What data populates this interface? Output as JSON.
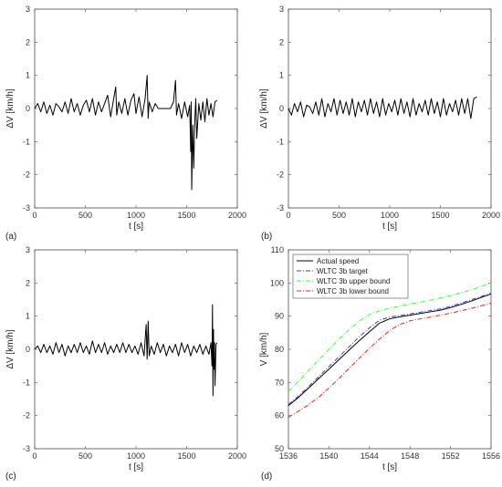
{
  "figure": {
    "panel_labels": [
      "(a)",
      "(b)",
      "(c)",
      "(d)"
    ]
  },
  "chart_data": [
    {
      "type": "line",
      "panel": "(a)",
      "xlabel": "t [s]",
      "ylabel": "ΔV [km/h]",
      "xlim": [
        0,
        2000
      ],
      "ylim": [
        -3,
        3
      ],
      "xticks": [
        0,
        500,
        1000,
        1500,
        2000
      ],
      "yticks": [
        -3,
        -2,
        -1,
        0,
        1,
        2,
        3
      ],
      "series": [
        {
          "color": "#000000",
          "x": [
            0,
            30,
            60,
            90,
            120,
            150,
            180,
            210,
            240,
            270,
            300,
            330,
            360,
            390,
            420,
            450,
            480,
            510,
            540,
            570,
            600,
            630,
            660,
            690,
            720,
            750,
            780,
            800,
            810,
            830,
            860,
            890,
            920,
            950,
            980,
            1000,
            1030,
            1060,
            1090,
            1110,
            1120,
            1130,
            1160,
            1190,
            1220,
            1250,
            1280,
            1310,
            1340,
            1370,
            1390,
            1400,
            1420,
            1450,
            1480,
            1510,
            1530,
            1540,
            1545,
            1550,
            1560,
            1570,
            1580,
            1590,
            1600,
            1620,
            1640,
            1660,
            1680,
            1700,
            1720,
            1740,
            1760,
            1780,
            1800
          ],
          "y": [
            0,
            0.15,
            -0.1,
            0.2,
            -0.15,
            0.1,
            -0.2,
            0.15,
            0.05,
            -0.1,
            0.2,
            -0.15,
            0.3,
            -0.1,
            0.15,
            -0.2,
            0.1,
            0.25,
            -0.1,
            0.3,
            -0.2,
            0.2,
            -0.1,
            0.15,
            0.4,
            -0.25,
            0.3,
            0.65,
            -0.2,
            0.2,
            -0.15,
            0.3,
            -0.2,
            0.25,
            0.45,
            -0.15,
            0.35,
            -0.25,
            0.3,
            1.0,
            -0.3,
            0.2,
            -0.1,
            0.15,
            0,
            0,
            0,
            0,
            0,
            0.2,
            0.85,
            -0.2,
            0.15,
            -0.3,
            0.2,
            -0.25,
            0.1,
            -1.3,
            0.2,
            -2.45,
            -0.5,
            -1.8,
            -0.4,
            0.3,
            -0.9,
            0.15,
            -0.35,
            0.2,
            -0.4,
            0.3,
            -0.2,
            0.15,
            -0.25,
            0.2,
            0.25
          ]
        }
      ]
    },
    {
      "type": "line",
      "panel": "(b)",
      "xlabel": "t [s]",
      "ylabel": "ΔV [km/h]",
      "xlim": [
        0,
        2000
      ],
      "ylim": [
        -3,
        3
      ],
      "xticks": [
        0,
        500,
        1000,
        1500,
        2000
      ],
      "yticks": [
        -3,
        -2,
        -1,
        0,
        1,
        2,
        3
      ],
      "series": [
        {
          "color": "#000000",
          "x": [
            0,
            30,
            60,
            90,
            120,
            150,
            180,
            210,
            240,
            270,
            300,
            330,
            360,
            390,
            420,
            450,
            480,
            510,
            540,
            570,
            600,
            630,
            660,
            690,
            720,
            750,
            780,
            810,
            840,
            870,
            900,
            930,
            960,
            990,
            1020,
            1050,
            1080,
            1110,
            1140,
            1170,
            1200,
            1230,
            1260,
            1290,
            1320,
            1350,
            1380,
            1410,
            1440,
            1470,
            1500,
            1530,
            1560,
            1590,
            1620,
            1650,
            1680,
            1710,
            1740,
            1770,
            1800,
            1830,
            1860
          ],
          "y": [
            0,
            -0.2,
            0.15,
            -0.1,
            0.2,
            -0.25,
            0.1,
            0.05,
            -0.15,
            0.2,
            -0.2,
            0.3,
            -0.25,
            0.15,
            -0.1,
            0.3,
            -0.2,
            0.25,
            -0.15,
            0.2,
            -0.2,
            0.3,
            -0.25,
            0.2,
            -0.1,
            0.25,
            -0.2,
            0.3,
            -0.15,
            0.2,
            -0.25,
            0.3,
            -0.2,
            0.15,
            -0.1,
            0.25,
            -0.2,
            0.3,
            -0.15,
            0.2,
            -0.25,
            0.3,
            -0.2,
            0.15,
            -0.1,
            0.25,
            -0.2,
            0.3,
            -0.15,
            0.2,
            -0.25,
            0.3,
            -0.2,
            0.15,
            -0.1,
            0.25,
            -0.2,
            0.3,
            -0.15,
            0.3,
            -0.3,
            0.3,
            0.35
          ]
        }
      ]
    },
    {
      "type": "line",
      "panel": "(c)",
      "xlabel": "t [s]",
      "ylabel": "ΔV [km/h]",
      "xlim": [
        0,
        2000
      ],
      "ylim": [
        -3,
        3
      ],
      "xticks": [
        0,
        500,
        1000,
        1500,
        2000
      ],
      "yticks": [
        -3,
        -2,
        -1,
        0,
        1,
        2,
        3
      ],
      "series": [
        {
          "color": "#000000",
          "x": [
            0,
            30,
            60,
            90,
            120,
            150,
            180,
            210,
            240,
            270,
            300,
            330,
            360,
            390,
            420,
            450,
            480,
            510,
            540,
            570,
            600,
            630,
            660,
            690,
            720,
            750,
            780,
            810,
            840,
            870,
            900,
            930,
            960,
            990,
            1020,
            1050,
            1080,
            1100,
            1110,
            1120,
            1130,
            1150,
            1180,
            1210,
            1240,
            1270,
            1300,
            1330,
            1360,
            1390,
            1420,
            1450,
            1480,
            1510,
            1540,
            1570,
            1600,
            1630,
            1660,
            1690,
            1720,
            1740,
            1750,
            1755,
            1760,
            1765,
            1770,
            1775,
            1780,
            1790,
            1800
          ],
          "y": [
            0,
            0.1,
            -0.1,
            0.15,
            -0.1,
            0.1,
            -0.15,
            0.2,
            -0.1,
            0.15,
            -0.2,
            0.1,
            -0.1,
            0.15,
            -0.1,
            0.2,
            -0.1,
            0.1,
            -0.15,
            0.25,
            -0.1,
            0.15,
            -0.1,
            0.2,
            -0.15,
            0.1,
            -0.1,
            0.15,
            -0.1,
            0.2,
            -0.1,
            0.15,
            -0.1,
            0.1,
            -0.15,
            0.2,
            -0.2,
            0.75,
            -0.3,
            0.85,
            -0.2,
            0.1,
            -0.15,
            0.2,
            -0.1,
            0.15,
            -0.2,
            0.1,
            -0.1,
            0.15,
            -0.2,
            0.2,
            -0.1,
            0.15,
            -0.2,
            0.1,
            -0.1,
            0.15,
            -0.15,
            0.1,
            -0.15,
            0.2,
            -0.5,
            1.35,
            -1.4,
            0.6,
            -0.6,
            0.2,
            -1.1,
            0.15,
            0.2
          ]
        }
      ]
    },
    {
      "type": "line",
      "panel": "(d)",
      "xlabel": "t [s]",
      "ylabel": "V [km/h]",
      "xlim": [
        1536,
        1556
      ],
      "ylim": [
        50,
        110
      ],
      "xticks": [
        1536,
        1540,
        1544,
        1548,
        1552,
        1556
      ],
      "yticks": [
        50,
        60,
        70,
        80,
        90,
        100,
        110
      ],
      "legend_position": "top-left",
      "series": [
        {
          "name": "Actual speed",
          "color": "#000000",
          "dash": "",
          "x": [
            1536,
            1537,
            1538,
            1539,
            1540,
            1541,
            1542,
            1543,
            1544,
            1545,
            1546,
            1547,
            1548,
            1549,
            1550,
            1551,
            1552,
            1553,
            1554,
            1555,
            1556
          ],
          "y": [
            63,
            65.5,
            68.3,
            71.2,
            74,
            76.9,
            79.8,
            82.6,
            85.3,
            87.9,
            89.2,
            89.8,
            90.3,
            90.8,
            91.3,
            91.8,
            92.6,
            93.5,
            94.5,
            95.6,
            96.7
          ]
        },
        {
          "name": "WLTC 3b target",
          "color": "#4040c0",
          "dash": "5,2,1,2",
          "x": [
            1536,
            1537,
            1538,
            1539,
            1540,
            1541,
            1542,
            1543,
            1544,
            1545,
            1546,
            1547,
            1548,
            1549,
            1550,
            1551,
            1552,
            1553,
            1554,
            1555,
            1556
          ],
          "y": [
            63.3,
            65.9,
            68.8,
            71.8,
            74.8,
            77.8,
            80.8,
            83.8,
            86.5,
            88.8,
            89.7,
            90.2,
            90.7,
            91.2,
            91.7,
            92.2,
            93,
            93.9,
            94.9,
            95.9,
            96.9
          ]
        },
        {
          "name": "WLTC 3b upper bound",
          "color": "#33ff33",
          "dash": "5,2,1,2",
          "x": [
            1536,
            1537,
            1538,
            1539,
            1540,
            1541,
            1542,
            1543,
            1544,
            1545,
            1546,
            1547,
            1548,
            1549,
            1550,
            1551,
            1552,
            1553,
            1554,
            1555,
            1556
          ],
          "y": [
            67.3,
            70.4,
            73.6,
            76.8,
            80,
            83.1,
            86,
            88.5,
            90.5,
            91.6,
            92.4,
            93,
            93.6,
            94.2,
            94.8,
            95.5,
            96.2,
            97,
            97.9,
            98.9,
            100
          ]
        },
        {
          "name": "WLTC 3b lower bound",
          "color": "#ee2222",
          "dash": "5,2,1,2",
          "x": [
            1536,
            1537,
            1538,
            1539,
            1540,
            1541,
            1542,
            1543,
            1544,
            1545,
            1546,
            1547,
            1548,
            1549,
            1550,
            1551,
            1552,
            1553,
            1554,
            1555,
            1556
          ],
          "y": [
            59.5,
            61.3,
            63.3,
            65.6,
            68.3,
            71.2,
            74.3,
            77.3,
            80.3,
            83.1,
            85.7,
            87.5,
            88.6,
            89.2,
            89.7,
            90.3,
            90.9,
            91.6,
            92.3,
            93.1,
            93.9
          ]
        }
      ]
    }
  ]
}
